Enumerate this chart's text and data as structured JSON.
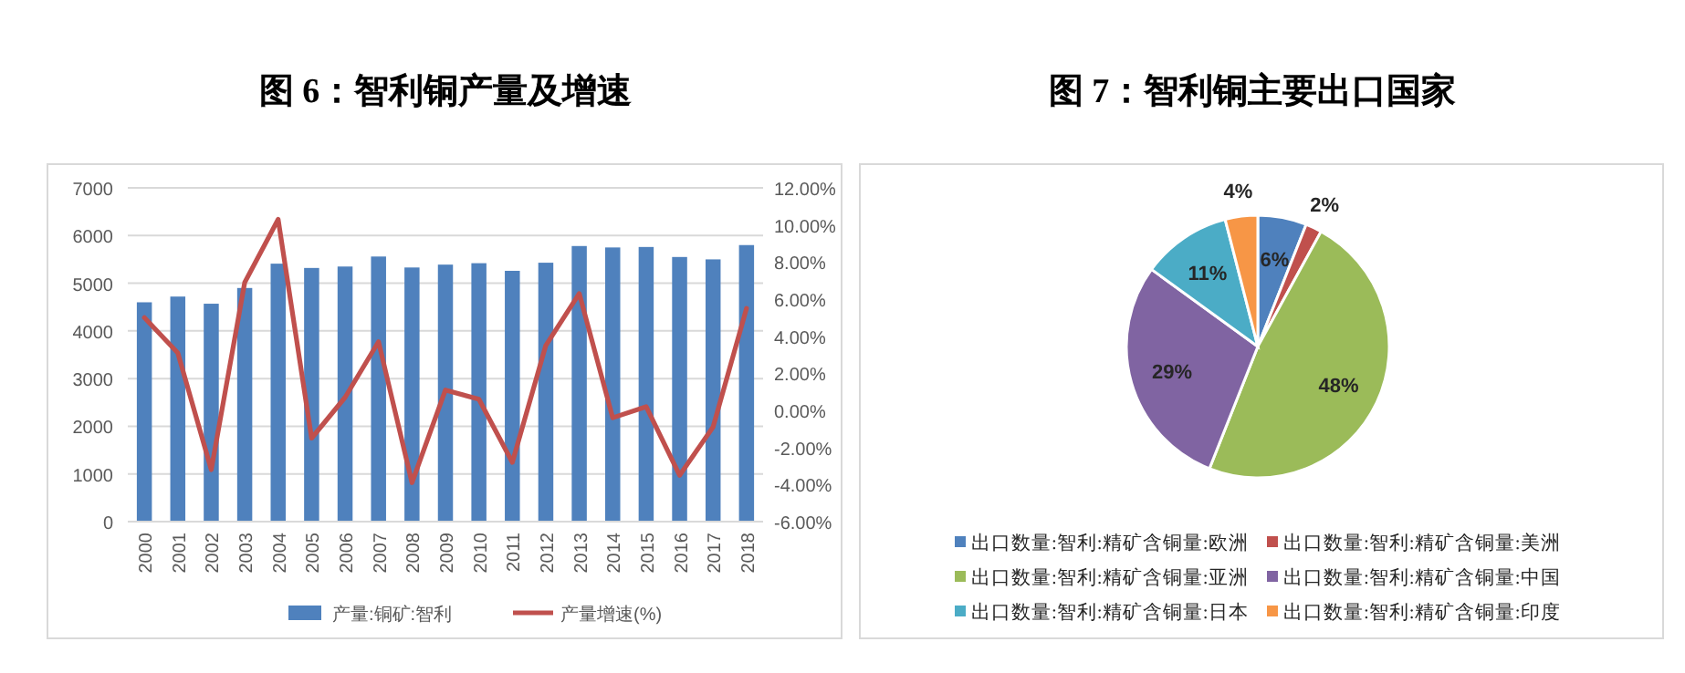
{
  "chart_data": [
    {
      "type": "bar",
      "title": "图 6：智利铜产量及增速",
      "categories": [
        "2000",
        "2001",
        "2002",
        "2003",
        "2004",
        "2005",
        "2006",
        "2007",
        "2008",
        "2009",
        "2010",
        "2011",
        "2012",
        "2013",
        "2014",
        "2015",
        "2016",
        "2017",
        "2018"
      ],
      "series": [
        {
          "name": "产量:铜矿:智利",
          "type": "bar",
          "color": "#4f81bd",
          "values": [
            4600,
            4720,
            4570,
            4900,
            5410,
            5320,
            5350,
            5560,
            5330,
            5390,
            5420,
            5260,
            5430,
            5780,
            5750,
            5760,
            5550,
            5500,
            5800
          ]
        },
        {
          "name": "产量增速(%)",
          "type": "line",
          "axis": "y2",
          "color": "#c0504d",
          "values": [
            5.0,
            3.1,
            -3.2,
            6.9,
            10.3,
            -1.5,
            0.7,
            3.7,
            -3.9,
            1.1,
            0.6,
            -2.8,
            3.5,
            6.3,
            -0.4,
            0.2,
            -3.5,
            -0.9,
            5.5
          ]
        }
      ],
      "ylim": [
        0,
        7000
      ],
      "yticks": [
        0,
        1000,
        2000,
        3000,
        4000,
        5000,
        6000,
        7000
      ],
      "y2lim": [
        -6,
        12
      ],
      "y2ticks": [
        {
          "value": -6,
          "label": "-6.00%"
        },
        {
          "value": -4,
          "label": "-4.00%"
        },
        {
          "value": -2,
          "label": "-2.00%"
        },
        {
          "value": 0,
          "label": "0.00%"
        },
        {
          "value": 2,
          "label": "2.00%"
        },
        {
          "value": 4,
          "label": "4.00%"
        },
        {
          "value": 6,
          "label": "6.00%"
        },
        {
          "value": 8,
          "label": "8.00%"
        },
        {
          "value": 10,
          "label": "10.00%"
        },
        {
          "value": 12,
          "label": "12.00%"
        }
      ],
      "grid": "y",
      "legend": "bottom",
      "marker": "none",
      "line_style": "solid"
    },
    {
      "type": "pie",
      "title": "图 7：智利铜主要出口国家",
      "categories": [
        "出口数量:智利:精矿含铜量:欧洲",
        "出口数量:智利:精矿含铜量:美洲",
        "出口数量:智利:精矿含铜量:亚洲",
        "出口数量:智利:精矿含铜量:中国",
        "出口数量:智利:精矿含铜量:日本",
        "出口数量:智利:精矿含铜量:印度"
      ],
      "values": [
        6,
        2,
        48,
        29,
        11,
        4
      ],
      "colors": [
        "#4f81bd",
        "#c0504d",
        "#9bbb59",
        "#8064a2",
        "#4bacc6",
        "#f79646"
      ],
      "value_labels": [
        "6%",
        "2%",
        "48%",
        "29%",
        "11%",
        "4%"
      ],
      "legend": "bottom"
    }
  ]
}
